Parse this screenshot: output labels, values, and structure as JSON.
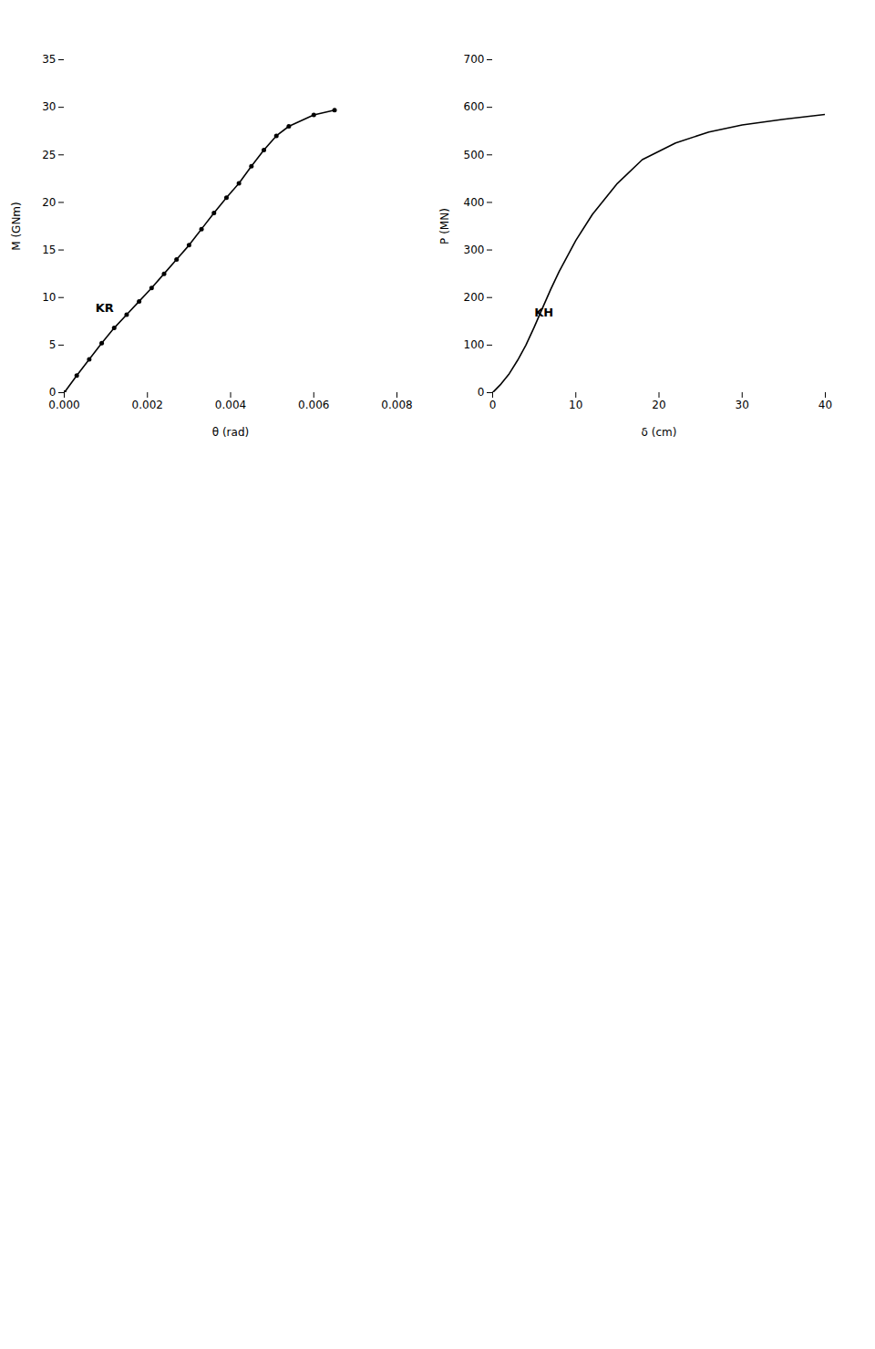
{
  "chart_data": [
    {
      "type": "line",
      "x": [
        0.0,
        0.0003,
        0.0006,
        0.0009,
        0.0012,
        0.0015,
        0.0018,
        0.0021,
        0.0024,
        0.0027,
        0.003,
        0.0033,
        0.0036,
        0.0039,
        0.0042,
        0.0045,
        0.0048,
        0.0051,
        0.0054,
        0.006,
        0.0065
      ],
      "values": [
        0.0,
        1.8,
        3.5,
        5.2,
        6.8,
        8.2,
        9.6,
        11.0,
        12.5,
        14.0,
        15.5,
        17.2,
        18.9,
        20.5,
        22.0,
        23.8,
        25.5,
        27.0,
        28.0,
        29.2,
        29.7
      ],
      "marker": "circle",
      "xlabel": "θ (rad)",
      "ylabel": "M (GNm)",
      "xlim": [
        0.0,
        0.008
      ],
      "ylim": [
        0,
        35
      ],
      "xticks": [
        {
          "value": 0.0,
          "label": "0.000"
        },
        0.002,
        0.004,
        0.006,
        0.008
      ],
      "yticks": [
        0,
        5,
        10,
        15,
        20,
        25,
        30,
        35
      ],
      "annotations": [
        {
          "text": "KR",
          "x": 0.00075,
          "y": 8.5
        }
      ]
    },
    {
      "type": "line",
      "x": [
        0,
        1,
        2,
        3,
        4,
        5,
        6,
        7,
        8,
        10,
        12,
        15,
        18,
        22,
        26,
        30,
        35,
        40
      ],
      "values": [
        0,
        18,
        40,
        68,
        100,
        138,
        178,
        218,
        255,
        320,
        375,
        440,
        490,
        525,
        548,
        563,
        575,
        585
      ],
      "xlabel": "δ (cm)",
      "ylabel": "P (MN)",
      "xlim": [
        0,
        40
      ],
      "ylim": [
        0,
        700
      ],
      "xticks": [
        0,
        10,
        20,
        30,
        40
      ],
      "yticks": [
        0,
        100,
        200,
        300,
        400,
        500,
        600,
        700
      ],
      "annotations": [
        {
          "text": "KH",
          "x": 5,
          "y": 160
        }
      ]
    }
  ]
}
